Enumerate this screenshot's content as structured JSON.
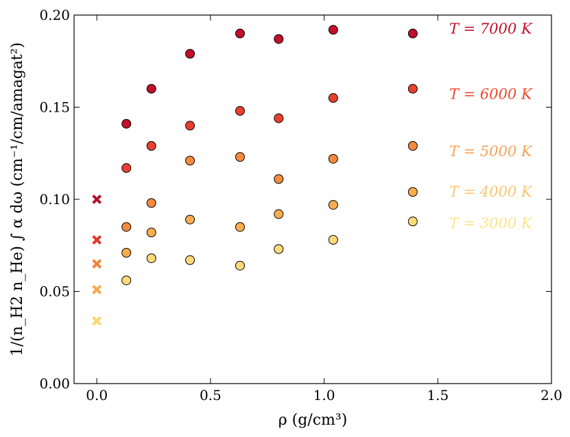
{
  "chart_data": {
    "type": "scatter",
    "title": "",
    "xlabel": "ρ (g/cm³)",
    "ylabel": "1/(n_H2 n_He) ∫ α dω (cm⁻¹/cm/amagat²)",
    "xlim": [
      -0.1,
      2.0
    ],
    "ylim": [
      0.0,
      0.2
    ],
    "xticks": [
      0.0,
      0.5,
      1.0,
      1.5,
      2.0
    ],
    "xtick_labels": [
      "0.0",
      "0.5",
      "1.0",
      "1.5",
      "2.0"
    ],
    "yticks": [
      0.0,
      0.05,
      0.1,
      0.15,
      0.2
    ],
    "ytick_labels": [
      "0.00",
      "0.05",
      "0.10",
      "0.15",
      "0.20"
    ],
    "grid": false,
    "series": [
      {
        "name": "T = 7000 K",
        "label": "T = 7000 K",
        "color": "#c0102a",
        "marker_color": "#c0102a",
        "x": [
          0.13,
          0.24,
          0.41,
          0.63,
          0.8,
          1.04,
          1.39
        ],
        "y": [
          0.141,
          0.16,
          0.179,
          0.19,
          0.187,
          0.192,
          0.19
        ],
        "x0": 0.0,
        "y0": 0.1,
        "x0_color": "#b6102a"
      },
      {
        "name": "T = 6000 K",
        "label": "T = 6000 K",
        "color": "#ee4a2f",
        "marker_color": "#e8412f",
        "x": [
          0.13,
          0.24,
          0.41,
          0.63,
          0.8,
          1.04,
          1.39
        ],
        "y": [
          0.117,
          0.129,
          0.14,
          0.148,
          0.144,
          0.155,
          0.16
        ],
        "x0": 0.0,
        "y0": 0.078,
        "x0_color": "#e23a2a"
      },
      {
        "name": "T = 5000 K",
        "label": "T = 5000 K",
        "color": "#f8a256",
        "marker_color": "#f58a3f",
        "x": [
          0.13,
          0.24,
          0.41,
          0.63,
          0.8,
          1.04,
          1.39
        ],
        "y": [
          0.085,
          0.098,
          0.121,
          0.123,
          0.111,
          0.122,
          0.129
        ],
        "x0": 0.0,
        "y0": 0.065,
        "x0_color": "#f4823c"
      },
      {
        "name": "T = 4000 K",
        "label": "T = 4000 K",
        "color": "#fbc570",
        "marker_color": "#f9ad4c",
        "x": [
          0.13,
          0.24,
          0.41,
          0.63,
          0.8,
          1.04,
          1.39
        ],
        "y": [
          0.071,
          0.082,
          0.089,
          0.085,
          0.092,
          0.097,
          0.104
        ],
        "x0": 0.0,
        "y0": 0.051,
        "x0_color": "#f9aa49"
      },
      {
        "name": "T = 3000 K",
        "label": "T = 3000 K",
        "color": "#fde48a",
        "marker_color": "#fed97a",
        "x": [
          0.13,
          0.24,
          0.41,
          0.63,
          0.8,
          1.04,
          1.39
        ],
        "y": [
          0.056,
          0.068,
          0.067,
          0.064,
          0.073,
          0.078,
          0.088
        ],
        "x0": 0.0,
        "y0": 0.034,
        "x0_color": "#fed670"
      }
    ],
    "label_y": [
      0.1925,
      0.157,
      0.126,
      0.104,
      0.087
    ]
  }
}
